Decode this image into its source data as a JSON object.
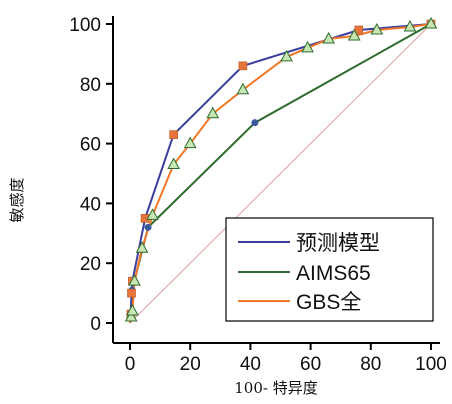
{
  "chart_data": {
    "type": "line",
    "title": "",
    "xlabel": "100- 特异度",
    "ylabel": "敏感度",
    "xlim": [
      0,
      100
    ],
    "ylim": [
      0,
      100
    ],
    "x_ticks": [
      "0",
      "20",
      "40",
      "60",
      "80",
      "100"
    ],
    "y_ticks": [
      "0",
      "20",
      "40",
      "60",
      "80",
      "100"
    ],
    "grid": false,
    "reference_line": {
      "from": [
        0,
        0
      ],
      "to": [
        100,
        100
      ],
      "color": "#d9a0a0"
    },
    "legend_position": "bottom-right",
    "series": [
      {
        "name": "预测模型",
        "color": "#3b3f9e",
        "marker": "square",
        "marker_color": "#e8743b",
        "points": [
          [
            0,
            0
          ],
          [
            0.3,
            3
          ],
          [
            0.5,
            10
          ],
          [
            0.8,
            14
          ],
          [
            5,
            35
          ],
          [
            14.5,
            63
          ],
          [
            37.5,
            86
          ],
          [
            76,
            98
          ],
          [
            100,
            100
          ]
        ]
      },
      {
        "name": "AIMS65",
        "color": "#2e6b2e",
        "marker": "circle",
        "marker_color": "#3a5aa0",
        "points": [
          [
            0,
            0
          ],
          [
            0.7,
            11
          ],
          [
            6,
            32
          ],
          [
            41.5,
            67
          ],
          [
            100,
            100
          ]
        ]
      },
      {
        "name": "GBS全",
        "color": "#f07828",
        "marker": "triangle",
        "marker_color": "#c8e6b4",
        "points": [
          [
            0,
            0
          ],
          [
            0.4,
            2
          ],
          [
            0.8,
            4
          ],
          [
            1.5,
            14
          ],
          [
            4,
            25
          ],
          [
            7.5,
            36
          ],
          [
            14.5,
            53
          ],
          [
            20,
            60
          ],
          [
            27.5,
            70
          ],
          [
            37.5,
            78
          ],
          [
            52,
            89
          ],
          [
            59,
            92
          ],
          [
            66,
            95
          ],
          [
            74.5,
            96
          ],
          [
            82,
            98
          ],
          [
            93,
            99
          ],
          [
            100,
            100
          ]
        ]
      }
    ]
  }
}
